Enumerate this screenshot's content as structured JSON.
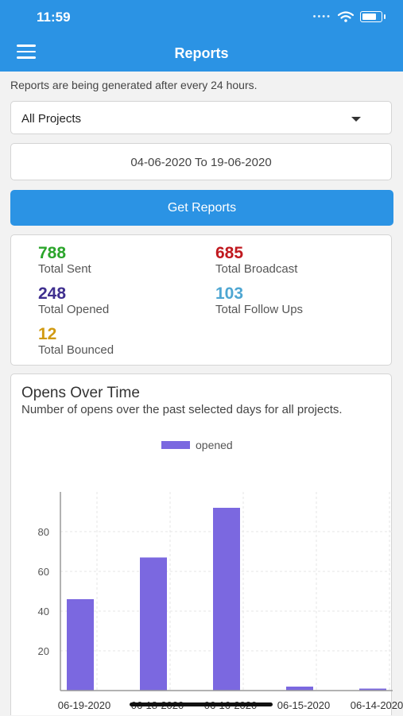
{
  "status": {
    "time": "11:59"
  },
  "header": {
    "title": "Reports"
  },
  "note": "Reports are being generated after every 24 hours.",
  "project_select": {
    "value": "All Projects"
  },
  "date_range": {
    "text": "04-06-2020 To 19-06-2020"
  },
  "get_reports_label": "Get Reports",
  "stats": {
    "sent": {
      "value": "788",
      "label": "Total Sent",
      "color": "#2ba52b"
    },
    "broadcast": {
      "value": "685",
      "label": "Total Broadcast",
      "color": "#c0191f"
    },
    "opened": {
      "value": "248",
      "label": "Total Opened",
      "color": "#3f2f8f"
    },
    "followups": {
      "value": "103",
      "label": "Total Follow Ups",
      "color": "#4ea6d2"
    },
    "bounced": {
      "value": "12",
      "label": "Total Bounced",
      "color": "#d19a12"
    }
  },
  "chart_card": {
    "title": "Opens Over Time",
    "subtitle": "Number of opens over the past selected days for all projects."
  },
  "chart_data": {
    "type": "bar",
    "categories": [
      "06-19-2020",
      "06-18-2020",
      "06-16-2020",
      "06-15-2020",
      "06-14-2020"
    ],
    "series": [
      {
        "name": "opened",
        "values": [
          46,
          67,
          92,
          2,
          1
        ],
        "color": "#7b68e0"
      }
    ],
    "yticks": [
      20,
      40,
      60,
      80
    ],
    "ylim": [
      0,
      100
    ],
    "legend": "top-center",
    "grid": true
  }
}
